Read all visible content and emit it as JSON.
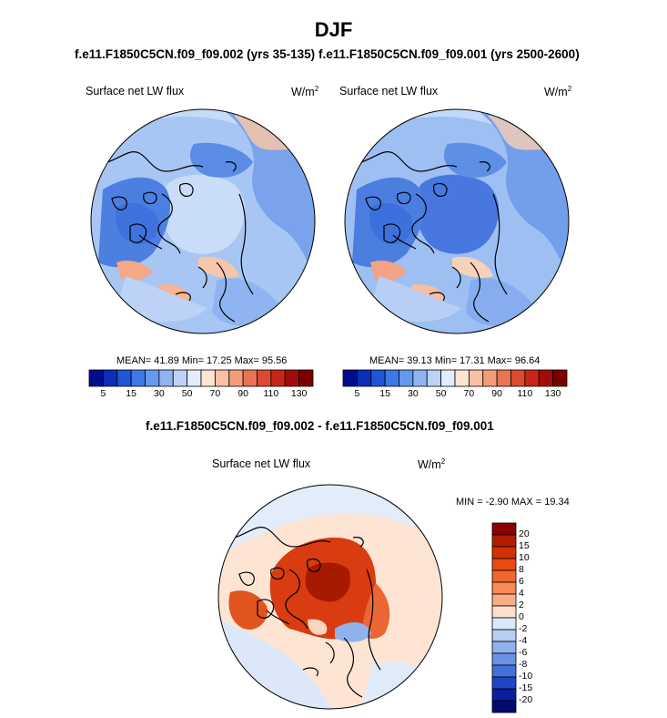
{
  "title": "DJF",
  "top_panel_titles": {
    "left": "f.e11.F1850C5CN.f09_f09.002 (yrs 35-135)",
    "right": "f.e11.F1850C5CN.f09_f09.001 (yrs 2500-2600)"
  },
  "panels": [
    {
      "variable": "Surface net LW flux",
      "units": "W/m",
      "units_exp": "2",
      "stats_text": "MEAN=  41.89  Min=  17.25  Max=  95.56",
      "mean": 41.89,
      "min": 17.25,
      "max": 95.56
    },
    {
      "variable": "Surface net LW flux",
      "units": "W/m",
      "units_exp": "2",
      "stats_text": "MEAN=  39.13  Min=  17.31  Max=  96.64",
      "mean": 39.13,
      "min": 17.31,
      "max": 96.64
    }
  ],
  "top_colorbar": {
    "tick_labels": [
      "5",
      "15",
      "30",
      "50",
      "70",
      "90",
      "110",
      "130"
    ],
    "colors": [
      "#000d8f",
      "#0a2fb8",
      "#1f55d6",
      "#3c78e6",
      "#6598ee",
      "#8fb4f2",
      "#bcd2f6",
      "#e2ecfa",
      "#fde4d3",
      "#f9c0a3",
      "#f39c7a",
      "#ea7352",
      "#dc4a30",
      "#c72718",
      "#a20c08",
      "#7a0000"
    ]
  },
  "diff_title": "f.e11.F1850C5CN.f09_f09.002 - f.e11.F1850C5CN.f09_f09.001",
  "diff_panel": {
    "variable": "Surface net LW flux",
    "units": "W/m",
    "units_exp": "2",
    "minmax_text": "MIN =  -2.90  MAX =  19.34",
    "min": -2.9,
    "max": 19.34
  },
  "diff_colorbar": {
    "tick_labels": [
      "20",
      "15",
      "10",
      "8",
      "6",
      "4",
      "2",
      "0",
      "-2",
      "-4",
      "-6",
      "-8",
      "-10",
      "-15",
      "-20"
    ],
    "colors": [
      "#8b0000",
      "#b31b00",
      "#d23200",
      "#e84a14",
      "#f2672e",
      "#f78a56",
      "#fbad86",
      "#fde0cc",
      "#d9e8fa",
      "#b5cff4",
      "#8fb2ee",
      "#6a92e6",
      "#4470de",
      "#2045c8",
      "#0a1f9e",
      "#000a70"
    ]
  }
}
